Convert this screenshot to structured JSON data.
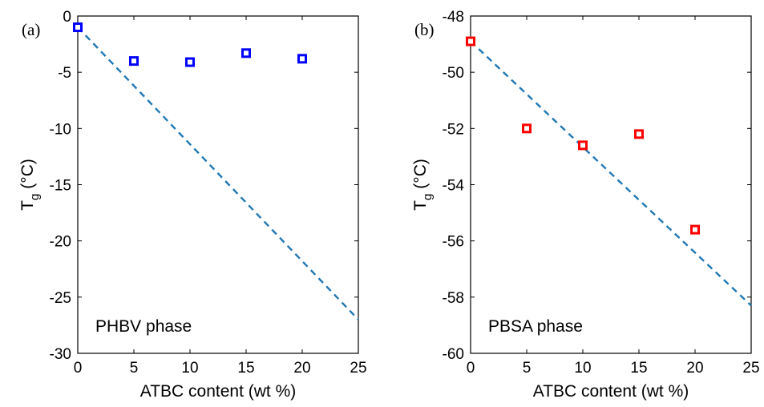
{
  "chart_data": [
    {
      "type": "scatter",
      "panel_label": "(a)",
      "annotation": "PHBV phase",
      "xlabel": "ATBC content (wt %)",
      "ylabel_main": "T",
      "ylabel_sub": "g",
      "ylabel_unit": "(°C)",
      "xlim": [
        0,
        25
      ],
      "ylim": [
        -30,
        0
      ],
      "xticks": [
        "0",
        "5",
        "10",
        "15",
        "20",
        "25"
      ],
      "yticks": [
        "0",
        "-5",
        "-10",
        "-15",
        "-20",
        "-25",
        "-30"
      ],
      "marker_color": "#0000ff",
      "line_color": "#1f77b4",
      "series": [
        {
          "x": [
            0,
            5,
            10,
            15,
            20
          ],
          "y": [
            -1.0,
            -4.0,
            -4.1,
            -3.3,
            -3.8
          ]
        }
      ],
      "fit_line": {
        "x": [
          0,
          25
        ],
        "y": [
          -1.0,
          -27.0
        ]
      }
    },
    {
      "type": "scatter",
      "panel_label": "(b)",
      "annotation": "PBSA phase",
      "xlabel": "ATBC content (wt %)",
      "ylabel_main": "T",
      "ylabel_sub": "g",
      "ylabel_unit": "(°C)",
      "xlim": [
        0,
        25
      ],
      "ylim": [
        -60,
        -48
      ],
      "xticks": [
        "0",
        "5",
        "10",
        "15",
        "20",
        "25"
      ],
      "yticks": [
        "-48",
        "-50",
        "-52",
        "-54",
        "-56",
        "-58",
        "-60"
      ],
      "marker_color": "#ff0000",
      "line_color": "#1f77b4",
      "series": [
        {
          "x": [
            0,
            5,
            10,
            15,
            20
          ],
          "y": [
            -48.9,
            -52.0,
            -52.6,
            -52.2,
            -55.6
          ]
        }
      ],
      "fit_line": {
        "x": [
          0,
          25
        ],
        "y": [
          -48.9,
          -58.3
        ]
      }
    }
  ]
}
